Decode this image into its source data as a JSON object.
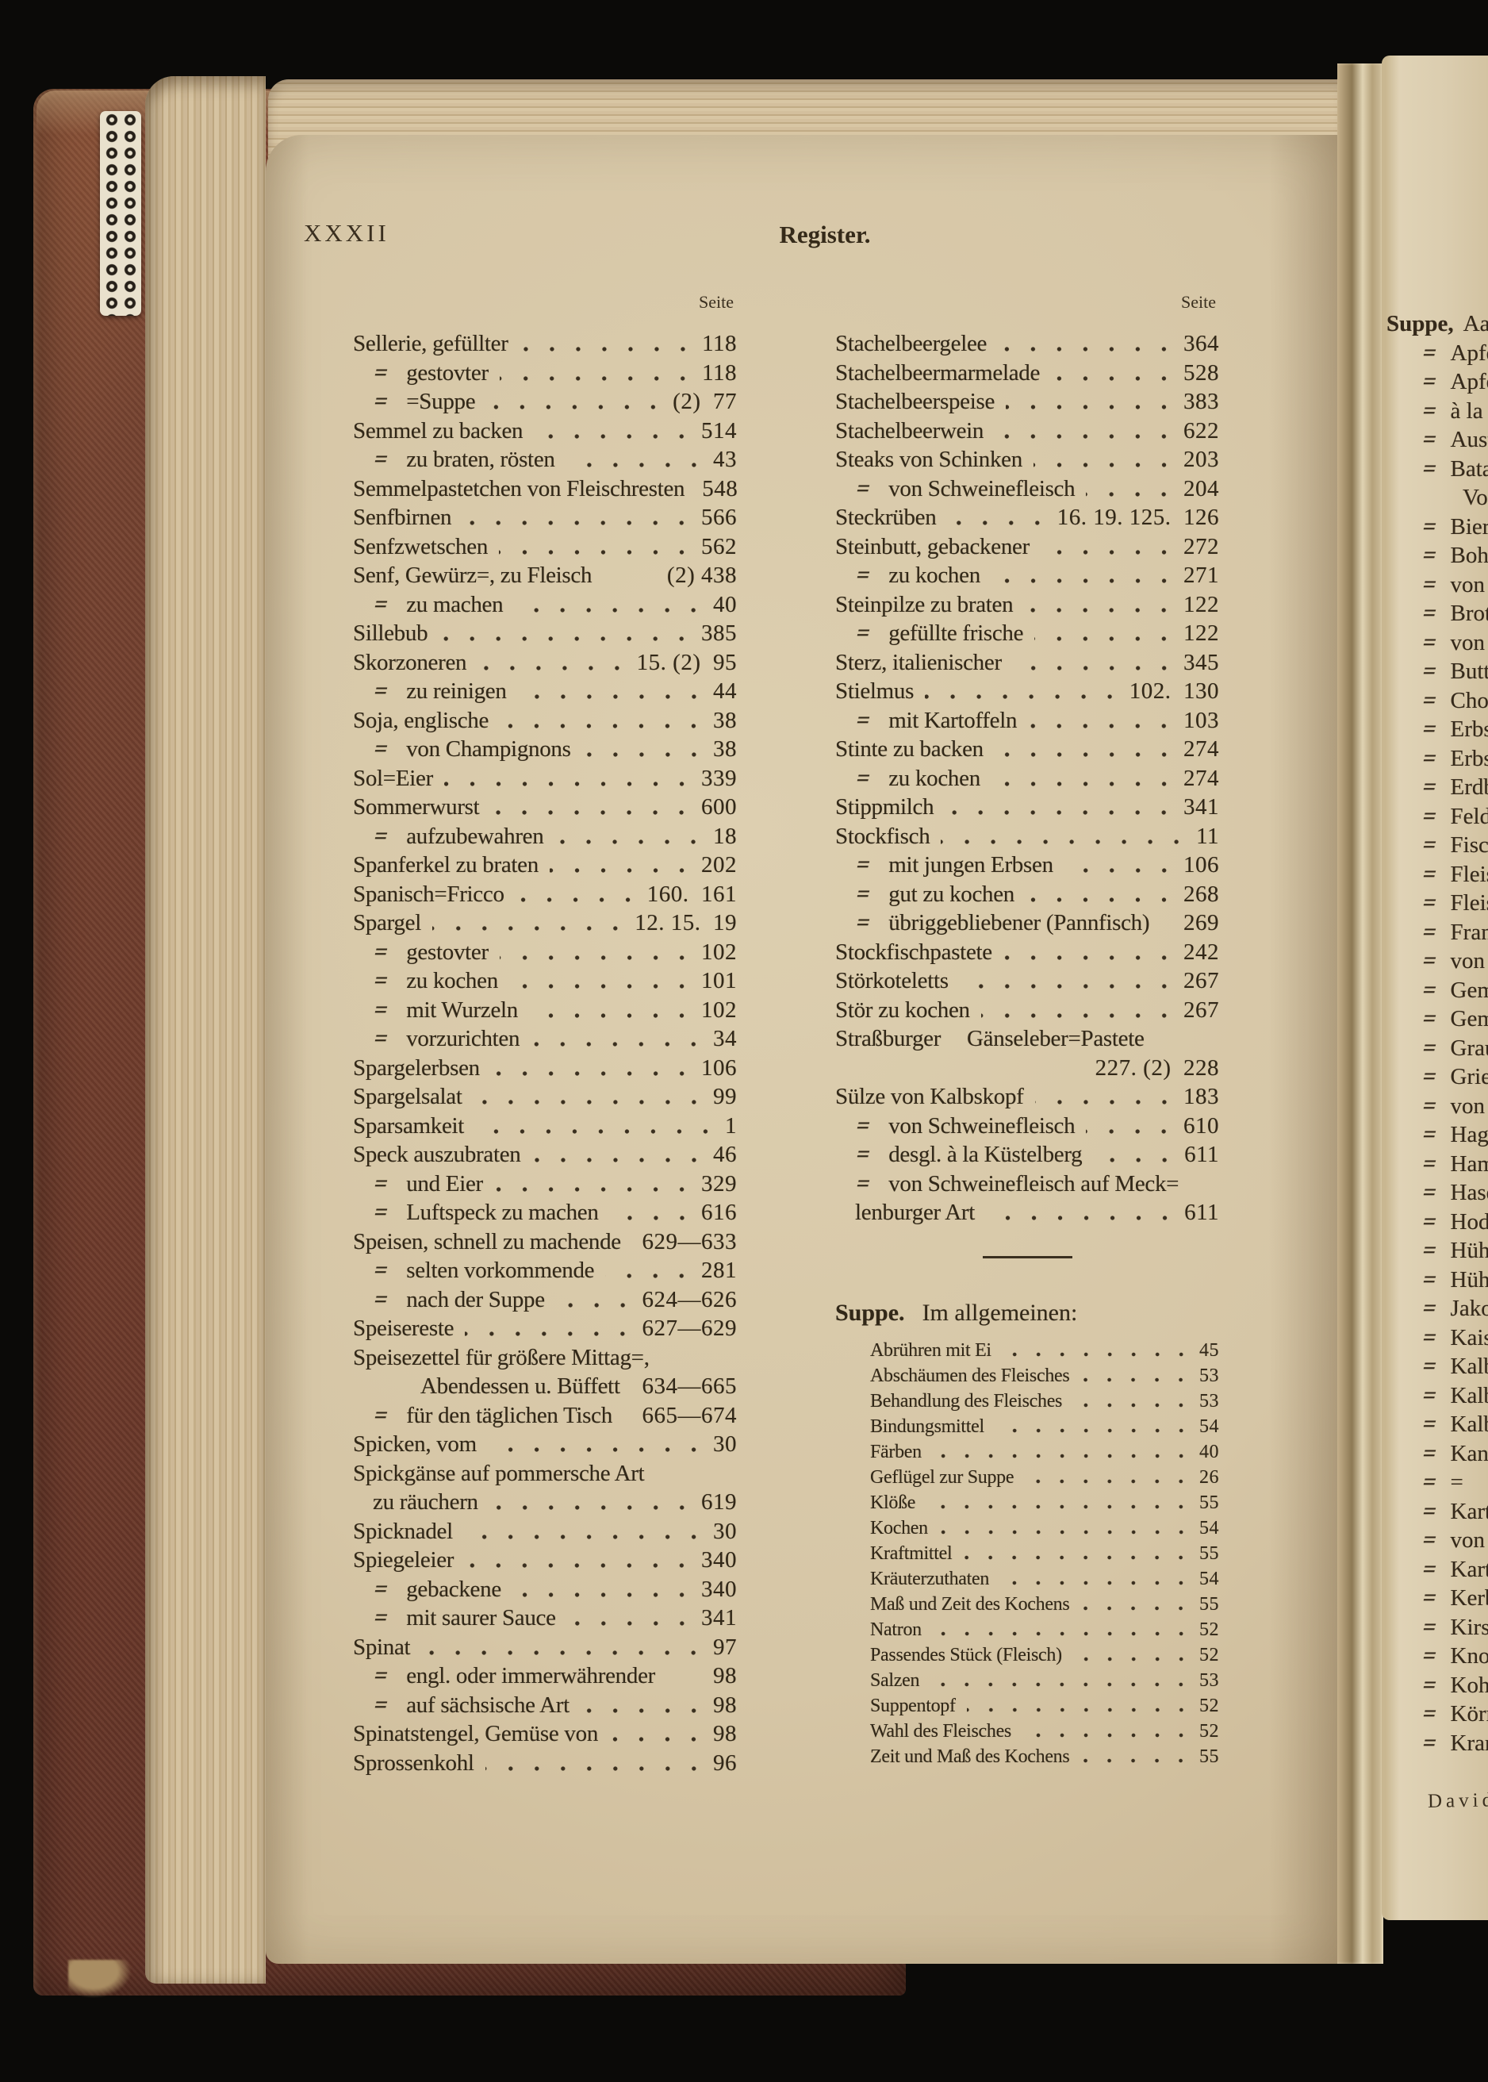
{
  "colors": {
    "background": "#0b0a08",
    "cover": "#6c392a",
    "paper": "#d6c6a6",
    "next_page_paper": "#dbcdaf",
    "ink": "#322818",
    "label": "#e9e1cd"
  },
  "page": {
    "folio": "XXXII",
    "running_title": "Register.",
    "col_header": "Seite",
    "left_column": [
      {
        "t": "Sellerie, gefüllter",
        "p": "118"
      },
      {
        "m": "=",
        "t": "gestovter",
        "p": "118",
        "i": 1
      },
      {
        "m": "=",
        "t": "=Suppe",
        "p": "(2)  77",
        "i": 1
      },
      {
        "t": "Semmel zu backen",
        "p": "514"
      },
      {
        "m": "=",
        "t": "zu braten, rösten",
        "p": "43",
        "i": 1
      },
      {
        "t": "Semmelpastetchen von Fleischresten",
        "p": "548",
        "d": false
      },
      {
        "t": "Senfbirnen",
        "p": "566"
      },
      {
        "t": "Senfzwetschen",
        "p": "562"
      },
      {
        "t": "Senf, Gewürz=, zu Fleisch",
        "p": "(2) 438",
        "d": false
      },
      {
        "m": "=",
        "t": "zu machen",
        "p": "40",
        "i": 1
      },
      {
        "t": "Sillebub",
        "p": "385"
      },
      {
        "t": "Skorzoneren",
        "p": "15. (2)  95"
      },
      {
        "m": "=",
        "t": "zu reinigen",
        "p": "44",
        "i": 1
      },
      {
        "t": "Soja, englische",
        "p": "38"
      },
      {
        "m": "=",
        "t": "von Champignons",
        "p": "38",
        "i": 1
      },
      {
        "t": "Sol=Eier",
        "p": "339"
      },
      {
        "t": "Sommerwurst",
        "p": "600"
      },
      {
        "m": "=",
        "t": "aufzubewahren",
        "p": "18",
        "i": 1
      },
      {
        "t": "Spanferkel zu braten",
        "p": "202"
      },
      {
        "t": "Spanisch=Fricco",
        "p": "160.  161"
      },
      {
        "t": "Spargel",
        "p": "12. 15.  19"
      },
      {
        "m": "=",
        "t": "gestovter",
        "p": "102",
        "i": 1
      },
      {
        "m": "=",
        "t": "zu kochen",
        "p": "101",
        "i": 1
      },
      {
        "m": "=",
        "t": "mit Wurzeln",
        "p": "102",
        "i": 1
      },
      {
        "m": "=",
        "t": "vorzurichten",
        "p": "34",
        "i": 1
      },
      {
        "t": "Spargelerbsen",
        "p": "106"
      },
      {
        "t": "Spargelsalat",
        "p": "99"
      },
      {
        "t": "Sparsamkeit",
        "p": "1"
      },
      {
        "t": "Speck auszubraten",
        "p": "46"
      },
      {
        "m": "=",
        "t": "und Eier",
        "p": "329",
        "i": 1
      },
      {
        "m": "=",
        "t": "Luftspeck zu machen",
        "p": "616",
        "i": 1
      },
      {
        "t": "Speisen, schnell zu machende",
        "p": "629—633",
        "d": false
      },
      {
        "m": "=",
        "t": "selten vorkommende",
        "p": "281",
        "i": 1
      },
      {
        "m": "=",
        "t": "nach der Suppe",
        "p": "624—626",
        "i": 1
      },
      {
        "t": "Speisereste",
        "p": "627—629"
      },
      {
        "t": "Speisezettel für größere Mittag=,",
        "d": false
      },
      {
        "t": "Abendessen u. Büffett",
        "p": "634—665",
        "i": 3,
        "d": false
      },
      {
        "m": "=",
        "t": "für den täglichen Tisch",
        "p": "665—674",
        "i": 1,
        "d": false
      },
      {
        "t": "Spicken, vom",
        "p": "30"
      },
      {
        "t": "Spickgänse auf pommersche Art",
        "d": false
      },
      {
        "t": "zu räuchern",
        "p": "619",
        "i": 2
      },
      {
        "t": "Spicknadel",
        "p": "30"
      },
      {
        "t": "Spiegeleier",
        "p": "340"
      },
      {
        "m": "=",
        "t": "gebackene",
        "p": "340",
        "i": 1
      },
      {
        "m": "=",
        "t": "mit saurer Sauce",
        "p": "341",
        "i": 1
      },
      {
        "t": "Spinat",
        "p": "97"
      },
      {
        "m": "=",
        "t": "engl. oder immerwährender",
        "p": "98",
        "i": 1,
        "d": false
      },
      {
        "m": "=",
        "t": "auf sächsische Art",
        "p": "98",
        "i": 1
      },
      {
        "t": "Spinatstengel, Gemüse von",
        "p": "98"
      },
      {
        "t": "Sprossenkohl",
        "p": "96"
      }
    ],
    "right_column": [
      {
        "t": "Stachelbeergelee",
        "p": "364"
      },
      {
        "t": "Stachelbeermarmelade",
        "p": "528"
      },
      {
        "t": "Stachelbeerspeise",
        "p": "383"
      },
      {
        "t": "Stachelbeerwein",
        "p": "622"
      },
      {
        "t": "Steaks von Schinken",
        "p": "203"
      },
      {
        "m": "=",
        "t": "von Schweinefleisch",
        "p": "204",
        "i": 1
      },
      {
        "t": "Steckrüben",
        "p": "16. 19. 125.  126"
      },
      {
        "t": "Steinbutt, gebackener",
        "p": "272"
      },
      {
        "m": "=",
        "t": "zu kochen",
        "p": "271",
        "i": 1
      },
      {
        "t": "Steinpilze zu braten",
        "p": "122"
      },
      {
        "m": "=",
        "t": "gefüllte frische",
        "p": "122",
        "i": 1
      },
      {
        "t": "Sterz, italienischer",
        "p": "345"
      },
      {
        "t": "Stielmus",
        "p": "102.  130"
      },
      {
        "m": "=",
        "t": "mit Kartoffeln",
        "p": "103",
        "i": 1
      },
      {
        "t": "Stinte zu backen",
        "p": "274"
      },
      {
        "m": "=",
        "t": "zu kochen",
        "p": "274",
        "i": 1
      },
      {
        "t": "Stippmilch",
        "p": "341"
      },
      {
        "t": "Stockfisch",
        "p": "11"
      },
      {
        "m": "=",
        "t": "mit jungen Erbsen",
        "p": "106",
        "i": 1
      },
      {
        "m": "=",
        "t": "gut zu kochen",
        "p": "268",
        "i": 1
      },
      {
        "m": "=",
        "t": "übriggebliebener (Pannfisch)",
        "p": "269",
        "i": 1,
        "d": false
      },
      {
        "t": "Stockfischpastete",
        "p": "242"
      },
      {
        "t": "Störkoteletts",
        "p": "267"
      },
      {
        "t": "Stör zu kochen",
        "p": "267"
      },
      {
        "t": "Straßburger Gänseleber=Pastete",
        "d": false,
        "sp": true
      },
      {
        "t": "",
        "p": "227. (2)  228",
        "d": false
      },
      {
        "t": "Sülze von Kalbskopf",
        "p": "183"
      },
      {
        "m": "=",
        "t": "von Schweinefleisch",
        "p": "610",
        "i": 1
      },
      {
        "m": "=",
        "t": "desgl. à la Küstelberg",
        "p": "611",
        "i": 1
      },
      {
        "m": "=",
        "t": "von Schweinefleisch auf Meck=",
        "i": 1,
        "d": false
      },
      {
        "t": "lenburger Art",
        "p": "611",
        "i": 2
      }
    ],
    "suppe_section": {
      "lead": "Suppe.",
      "title_rest": "Im allgemeinen:",
      "entries": [
        {
          "t": "Abrühren mit Ei",
          "p": "45"
        },
        {
          "t": "Abschäumen des Fleisches",
          "p": "53"
        },
        {
          "t": "Behandlung des Fleisches",
          "p": "53"
        },
        {
          "t": "Bindungsmittel",
          "p": "54"
        },
        {
          "t": "Färben",
          "p": "40"
        },
        {
          "t": "Geflügel zur Suppe",
          "p": "26"
        },
        {
          "t": "Klöße",
          "p": "55"
        },
        {
          "t": "Kochen",
          "p": "54"
        },
        {
          "t": "Kraftmittel",
          "p": "55"
        },
        {
          "t": "Kräuterzuthaten",
          "p": "54"
        },
        {
          "t": "Maß und Zeit des Kochens",
          "p": "55"
        },
        {
          "t": "Natron",
          "p": "52"
        },
        {
          "t": "Passendes Stück (Fleisch)",
          "p": "52"
        },
        {
          "t": "Salzen",
          "p": "53"
        },
        {
          "t": "Suppentopf",
          "p": "52"
        },
        {
          "t": "Wahl des Fleisches",
          "p": "52"
        },
        {
          "t": "Zeit und Maß des Kochens",
          "p": "55"
        }
      ]
    },
    "next_page": {
      "catchword": "Davidi",
      "entries": [
        {
          "lead": "Suppe,",
          "t": "Aal"
        },
        {
          "m": "=",
          "t": "Apfel=",
          "i": 1
        },
        {
          "m": "=",
          "t": "Apfelw",
          "i": 1
        },
        {
          "m": "=",
          "t": "à la r",
          "i": 1
        },
        {
          "m": "=",
          "t": "Austern",
          "i": 1
        },
        {
          "m": "=",
          "t": "Batavi",
          "i": 1
        },
        {
          "t": "Voge",
          "i": 2
        },
        {
          "m": "=",
          "t": "Bier=",
          "i": 1
        },
        {
          "m": "=",
          "t": "Bohne",
          "i": 1
        },
        {
          "m": "=",
          "t": "von B",
          "i": 1
        },
        {
          "m": "=",
          "t": "Brot=",
          "i": 1
        },
        {
          "m": "=",
          "t": "von B",
          "i": 1
        },
        {
          "m": "=",
          "t": "Butter",
          "i": 1
        },
        {
          "m": "=",
          "t": "Chokol",
          "i": 1
        },
        {
          "m": "=",
          "t": "Erbsen",
          "i": 1
        },
        {
          "m": "=",
          "t": "Erbsm",
          "i": 1
        },
        {
          "m": "=",
          "t": "Erdbee",
          "i": 1
        },
        {
          "m": "=",
          "t": "Feldhü",
          "i": 1
        },
        {
          "m": "=",
          "t": "Fisch=",
          "i": 1
        },
        {
          "m": "=",
          "t": "Fleisch",
          "i": 1
        },
        {
          "m": "=",
          "t": "Fleisch",
          "i": 1
        },
        {
          "m": "=",
          "t": "Franz",
          "i": 1
        },
        {
          "m": "=",
          "t": "von j",
          "i": 1
        },
        {
          "m": "=",
          "t": "Gemü",
          "i": 1
        },
        {
          "m": "=",
          "t": "Gemü",
          "i": 1
        },
        {
          "m": "=",
          "t": "Grau",
          "i": 1
        },
        {
          "m": "=",
          "t": "Grieß",
          "i": 1
        },
        {
          "m": "=",
          "t": "von H",
          "i": 1
        },
        {
          "m": "=",
          "t": "Hagel",
          "i": 1
        },
        {
          "m": "=",
          "t": "Hamm",
          "i": 1
        },
        {
          "m": "=",
          "t": "Hasen",
          "i": 1
        },
        {
          "m": "=",
          "t": "Hodge",
          "i": 1
        },
        {
          "m": "=",
          "t": "Hühn",
          "i": 1
        },
        {
          "m": "=",
          "t": "Hühn",
          "i": 1
        },
        {
          "m": "=",
          "t": "Jakob",
          "i": 1
        },
        {
          "m": "=",
          "t": "Kaiser",
          "i": 1
        },
        {
          "m": "=",
          "t": "Kalbf",
          "i": 1
        },
        {
          "m": "=",
          "t": "Kalbs",
          "i": 1
        },
        {
          "m": "=",
          "t": "Kalbs",
          "i": 1
        },
        {
          "m": "=",
          "t": "Kanin",
          "i": 1
        },
        {
          "m": "=",
          "t": "=",
          "i": 1
        },
        {
          "m": "=",
          "t": "Karto",
          "i": 1
        },
        {
          "m": "=",
          "t": "von K",
          "i": 1
        },
        {
          "m": "=",
          "t": "Karto",
          "i": 1
        },
        {
          "m": "=",
          "t": "Kerbe",
          "i": 1
        },
        {
          "m": "=",
          "t": "Kirsch",
          "i": 1
        },
        {
          "m": "=",
          "t": "Knoch",
          "i": 1
        },
        {
          "m": "=",
          "t": "Kohl=",
          "i": 1
        },
        {
          "m": "=",
          "t": "Körne",
          "i": 1
        },
        {
          "m": "=",
          "t": "Kram",
          "i": 1
        }
      ]
    }
  }
}
